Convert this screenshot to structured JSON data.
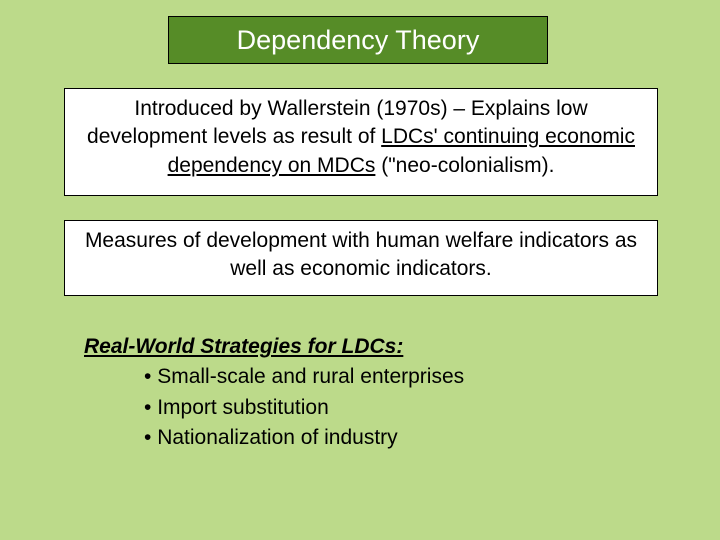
{
  "colors": {
    "background": "#bcda8a",
    "title_fill": "#568c27",
    "title_text": "#ffffff",
    "box_fill": "#ffffff",
    "border": "#000000",
    "body_text": "#000000"
  },
  "typography": {
    "family": "Trebuchet MS",
    "title_fontsize": 27,
    "body_fontsize": 21
  },
  "title": "Dependency Theory",
  "box1": {
    "pre": "Introduced by Wallerstein (1970s) – Explains low development levels as result of ",
    "underlined": "LDCs' continuing economic dependency on MDCs",
    "post": " (\"neo-colonialism)."
  },
  "box2": "Measures of development with human welfare indicators as well as economic indicators.",
  "strategies": {
    "heading": "Real-World Strategies for LDCs:",
    "items": [
      "Small-scale and rural enterprises",
      "Import substitution",
      "Nationalization of industry"
    ]
  }
}
